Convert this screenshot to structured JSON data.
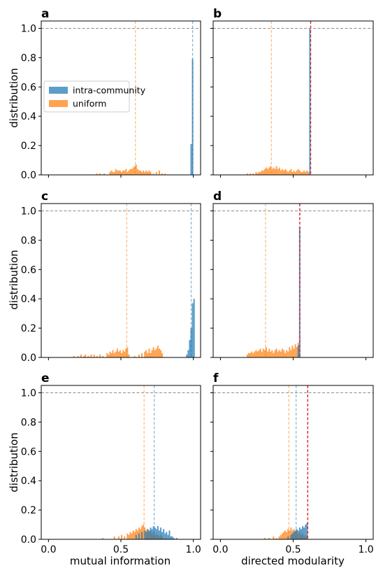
{
  "figure": {
    "ylabel": "distribution",
    "xlabel_left": "mutual information",
    "xlabel_right": "directed modularity"
  },
  "colors": {
    "intra": "#1f77b4",
    "uniform": "#ff7f0e",
    "observed": "#d62728",
    "reference": "#808080"
  },
  "legend": {
    "intra": "intra-community",
    "uniform": "uniform"
  },
  "chart_data": [
    {
      "type": "bar",
      "label": "a",
      "xlim": [
        -0.05,
        1.05
      ],
      "ylim": [
        0,
        1.05
      ],
      "x_ticks": [],
      "y_ticks": [
        "0.0",
        "0.2",
        "0.4",
        "0.6",
        "0.8",
        "1.0"
      ],
      "bin_width": 0.01,
      "ref_line": 1.0,
      "uniform_mean": 0.6,
      "intra_mean": 0.995,
      "observed": null,
      "uniform_bins": [
        [
          0.33,
          0.01
        ],
        [
          0.35,
          0.01
        ],
        [
          0.38,
          0.01
        ],
        [
          0.42,
          0.02
        ],
        [
          0.43,
          0.03
        ],
        [
          0.44,
          0.02
        ],
        [
          0.45,
          0.02
        ],
        [
          0.46,
          0.04
        ],
        [
          0.47,
          0.03
        ],
        [
          0.48,
          0.03
        ],
        [
          0.49,
          0.03
        ],
        [
          0.5,
          0.02
        ],
        [
          0.51,
          0.03
        ],
        [
          0.52,
          0.03
        ],
        [
          0.53,
          0.04
        ],
        [
          0.54,
          0.02
        ],
        [
          0.55,
          0.03
        ],
        [
          0.56,
          0.04
        ],
        [
          0.57,
          0.04
        ],
        [
          0.58,
          0.05
        ],
        [
          0.59,
          0.06
        ],
        [
          0.6,
          0.07
        ],
        [
          0.61,
          0.04
        ],
        [
          0.62,
          0.03
        ],
        [
          0.63,
          0.03
        ],
        [
          0.64,
          0.02
        ],
        [
          0.65,
          0.03
        ],
        [
          0.66,
          0.02
        ],
        [
          0.67,
          0.03
        ],
        [
          0.68,
          0.02
        ],
        [
          0.69,
          0.03
        ],
        [
          0.7,
          0.02
        ],
        [
          0.72,
          0.01
        ],
        [
          0.74,
          0.02
        ],
        [
          0.76,
          0.03
        ],
        [
          0.78,
          0.01
        ],
        [
          0.8,
          0.01
        ]
      ],
      "intra_bins": [
        [
          0.98,
          0.21
        ],
        [
          0.99,
          0.79
        ]
      ]
    },
    {
      "type": "bar",
      "label": "b",
      "xlim": [
        -0.05,
        1.05
      ],
      "ylim": [
        0,
        1.05
      ],
      "x_ticks": [],
      "y_ticks": [],
      "bin_width": 0.01,
      "ref_line": 1.0,
      "uniform_mean": 0.35,
      "intra_mean": null,
      "observed": 0.62,
      "uniform_bins": [
        [
          0.18,
          0.01
        ],
        [
          0.2,
          0.01
        ],
        [
          0.22,
          0.01
        ],
        [
          0.24,
          0.02
        ],
        [
          0.25,
          0.01
        ],
        [
          0.26,
          0.02
        ],
        [
          0.27,
          0.02
        ],
        [
          0.28,
          0.03
        ],
        [
          0.29,
          0.03
        ],
        [
          0.3,
          0.04
        ],
        [
          0.31,
          0.05
        ],
        [
          0.32,
          0.04
        ],
        [
          0.33,
          0.05
        ],
        [
          0.34,
          0.06
        ],
        [
          0.35,
          0.04
        ],
        [
          0.36,
          0.05
        ],
        [
          0.37,
          0.04
        ],
        [
          0.38,
          0.06
        ],
        [
          0.39,
          0.04
        ],
        [
          0.4,
          0.05
        ],
        [
          0.41,
          0.03
        ],
        [
          0.42,
          0.04
        ],
        [
          0.43,
          0.03
        ],
        [
          0.44,
          0.04
        ],
        [
          0.45,
          0.03
        ],
        [
          0.46,
          0.02
        ],
        [
          0.47,
          0.03
        ],
        [
          0.48,
          0.04
        ],
        [
          0.49,
          0.02
        ],
        [
          0.5,
          0.03
        ],
        [
          0.51,
          0.02
        ],
        [
          0.52,
          0.03
        ],
        [
          0.53,
          0.04
        ],
        [
          0.54,
          0.03
        ],
        [
          0.55,
          0.02
        ],
        [
          0.56,
          0.02
        ],
        [
          0.57,
          0.03
        ],
        [
          0.58,
          0.02
        ],
        [
          0.59,
          0.03
        ],
        [
          0.6,
          0.02
        ]
      ],
      "intra_bins": [
        [
          0.61,
          1.0
        ]
      ]
    },
    {
      "type": "bar",
      "label": "c",
      "xlim": [
        -0.05,
        1.05
      ],
      "ylim": [
        0,
        1.05
      ],
      "x_ticks": [],
      "y_ticks": [
        "0.0",
        "0.2",
        "0.4",
        "0.6",
        "0.8",
        "1.0"
      ],
      "bin_width": 0.01,
      "ref_line": 1.0,
      "uniform_mean": 0.54,
      "intra_mean": 0.985,
      "observed": null,
      "uniform_bins": [
        [
          0.17,
          0.01
        ],
        [
          0.2,
          0.01
        ],
        [
          0.22,
          0.02
        ],
        [
          0.24,
          0.01
        ],
        [
          0.25,
          0.02
        ],
        [
          0.27,
          0.01
        ],
        [
          0.29,
          0.02
        ],
        [
          0.31,
          0.02
        ],
        [
          0.33,
          0.01
        ],
        [
          0.35,
          0.02
        ],
        [
          0.37,
          0.01
        ],
        [
          0.4,
          0.03
        ],
        [
          0.41,
          0.02
        ],
        [
          0.42,
          0.04
        ],
        [
          0.43,
          0.03
        ],
        [
          0.44,
          0.05
        ],
        [
          0.45,
          0.03
        ],
        [
          0.46,
          0.04
        ],
        [
          0.47,
          0.06
        ],
        [
          0.48,
          0.04
        ],
        [
          0.49,
          0.05
        ],
        [
          0.5,
          0.03
        ],
        [
          0.51,
          0.05
        ],
        [
          0.52,
          0.04
        ],
        [
          0.53,
          0.06
        ],
        [
          0.54,
          0.07
        ],
        [
          0.55,
          0.02
        ],
        [
          0.59,
          0.01
        ],
        [
          0.62,
          0.02
        ],
        [
          0.64,
          0.03
        ],
        [
          0.66,
          0.04
        ],
        [
          0.67,
          0.05
        ],
        [
          0.68,
          0.03
        ],
        [
          0.69,
          0.06
        ],
        [
          0.7,
          0.03
        ],
        [
          0.71,
          0.05
        ],
        [
          0.72,
          0.07
        ],
        [
          0.73,
          0.05
        ],
        [
          0.74,
          0.06
        ],
        [
          0.75,
          0.08
        ],
        [
          0.76,
          0.06
        ],
        [
          0.77,
          0.05
        ],
        [
          0.78,
          0.03
        ]
      ],
      "intra_bins": [
        [
          0.95,
          0.02
        ],
        [
          0.96,
          0.05
        ],
        [
          0.97,
          0.12
        ],
        [
          0.98,
          0.2
        ],
        [
          0.99,
          0.37
        ],
        [
          1.0,
          0.4
        ]
      ]
    },
    {
      "type": "bar",
      "label": "d",
      "xlim": [
        -0.05,
        1.05
      ],
      "ylim": [
        0,
        1.05
      ],
      "x_ticks": [],
      "y_ticks": [],
      "bin_width": 0.01,
      "ref_line": 1.0,
      "uniform_mean": 0.31,
      "intra_mean": null,
      "observed": 0.545,
      "uniform_bins": [
        [
          0.18,
          0.02
        ],
        [
          0.19,
          0.03
        ],
        [
          0.2,
          0.03
        ],
        [
          0.21,
          0.04
        ],
        [
          0.22,
          0.03
        ],
        [
          0.23,
          0.04
        ],
        [
          0.24,
          0.05
        ],
        [
          0.25,
          0.04
        ],
        [
          0.26,
          0.05
        ],
        [
          0.27,
          0.06
        ],
        [
          0.28,
          0.04
        ],
        [
          0.29,
          0.06
        ],
        [
          0.3,
          0.05
        ],
        [
          0.31,
          0.07
        ],
        [
          0.32,
          0.04
        ],
        [
          0.33,
          0.06
        ],
        [
          0.34,
          0.04
        ],
        [
          0.35,
          0.05
        ],
        [
          0.36,
          0.03
        ],
        [
          0.37,
          0.05
        ],
        [
          0.38,
          0.06
        ],
        [
          0.39,
          0.04
        ],
        [
          0.4,
          0.05
        ],
        [
          0.41,
          0.04
        ],
        [
          0.42,
          0.06
        ],
        [
          0.43,
          0.05
        ],
        [
          0.44,
          0.03
        ],
        [
          0.45,
          0.05
        ],
        [
          0.46,
          0.04
        ],
        [
          0.47,
          0.07
        ],
        [
          0.48,
          0.05
        ],
        [
          0.49,
          0.08
        ],
        [
          0.5,
          0.06
        ],
        [
          0.51,
          0.09
        ],
        [
          0.52,
          0.07
        ],
        [
          0.53,
          0.1
        ]
      ],
      "intra_bins": [
        [
          0.53,
          0.08
        ],
        [
          0.54,
          0.89
        ]
      ]
    },
    {
      "type": "bar",
      "label": "e",
      "xlim": [
        -0.05,
        1.05
      ],
      "ylim": [
        0,
        1.05
      ],
      "x_ticks": [
        "0.0",
        "0.5",
        "1.0"
      ],
      "y_ticks": [
        "0.0",
        "0.2",
        "0.4",
        "0.6",
        "0.8",
        "1.0"
      ],
      "bin_width": 0.01,
      "ref_line": 1.0,
      "uniform_mean": 0.66,
      "intra_mean": 0.73,
      "observed": null,
      "uniform_bins": [
        [
          0.37,
          0.01
        ],
        [
          0.45,
          0.02
        ],
        [
          0.48,
          0.02
        ],
        [
          0.5,
          0.03
        ],
        [
          0.52,
          0.02
        ],
        [
          0.54,
          0.04
        ],
        [
          0.55,
          0.03
        ],
        [
          0.56,
          0.05
        ],
        [
          0.57,
          0.04
        ],
        [
          0.58,
          0.06
        ],
        [
          0.59,
          0.05
        ],
        [
          0.6,
          0.07
        ],
        [
          0.61,
          0.06
        ],
        [
          0.62,
          0.08
        ],
        [
          0.63,
          0.07
        ],
        [
          0.64,
          0.09
        ],
        [
          0.65,
          0.1
        ],
        [
          0.66,
          0.08
        ],
        [
          0.67,
          0.06
        ],
        [
          0.68,
          0.07
        ],
        [
          0.69,
          0.05
        ],
        [
          0.7,
          0.06
        ],
        [
          0.71,
          0.04
        ],
        [
          0.72,
          0.05
        ],
        [
          0.73,
          0.03
        ],
        [
          0.74,
          0.04
        ],
        [
          0.75,
          0.03
        ],
        [
          0.76,
          0.02
        ],
        [
          0.77,
          0.03
        ],
        [
          0.78,
          0.02
        ],
        [
          0.8,
          0.01
        ]
      ],
      "intra_bins": [
        [
          0.6,
          0.03
        ],
        [
          0.62,
          0.04
        ],
        [
          0.64,
          0.05
        ],
        [
          0.66,
          0.06
        ],
        [
          0.67,
          0.05
        ],
        [
          0.68,
          0.07
        ],
        [
          0.69,
          0.06
        ],
        [
          0.7,
          0.08
        ],
        [
          0.71,
          0.07
        ],
        [
          0.72,
          0.09
        ],
        [
          0.73,
          0.08
        ],
        [
          0.74,
          0.07
        ],
        [
          0.75,
          0.09
        ],
        [
          0.76,
          0.06
        ],
        [
          0.77,
          0.08
        ],
        [
          0.78,
          0.05
        ],
        [
          0.79,
          0.07
        ],
        [
          0.8,
          0.04
        ],
        [
          0.81,
          0.05
        ],
        [
          0.82,
          0.03
        ],
        [
          0.83,
          0.06
        ],
        [
          0.84,
          0.02
        ],
        [
          0.85,
          0.02
        ],
        [
          0.86,
          0.01
        ],
        [
          0.88,
          0.01
        ]
      ]
    },
    {
      "type": "bar",
      "label": "f",
      "xlim": [
        -0.05,
        1.05
      ],
      "ylim": [
        0,
        1.05
      ],
      "x_ticks": [
        "0.0",
        "0.5",
        "1.0"
      ],
      "y_ticks": [],
      "bin_width": 0.01,
      "ref_line": 1.0,
      "uniform_mean": 0.47,
      "intra_mean": 0.52,
      "observed": 0.6,
      "uniform_bins": [
        [
          0.3,
          0.01
        ],
        [
          0.33,
          0.01
        ],
        [
          0.36,
          0.02
        ],
        [
          0.38,
          0.01
        ],
        [
          0.4,
          0.02
        ],
        [
          0.41,
          0.03
        ],
        [
          0.42,
          0.04
        ],
        [
          0.43,
          0.05
        ],
        [
          0.44,
          0.06
        ],
        [
          0.45,
          0.05
        ],
        [
          0.46,
          0.07
        ],
        [
          0.47,
          0.06
        ],
        [
          0.48,
          0.08
        ],
        [
          0.49,
          0.06
        ],
        [
          0.5,
          0.07
        ],
        [
          0.51,
          0.05
        ],
        [
          0.52,
          0.06
        ],
        [
          0.53,
          0.04
        ],
        [
          0.54,
          0.05
        ],
        [
          0.55,
          0.03
        ],
        [
          0.56,
          0.04
        ],
        [
          0.57,
          0.02
        ],
        [
          0.58,
          0.03
        ],
        [
          0.59,
          0.02
        ]
      ],
      "intra_bins": [
        [
          0.46,
          0.02
        ],
        [
          0.48,
          0.03
        ],
        [
          0.49,
          0.04
        ],
        [
          0.5,
          0.05
        ],
        [
          0.51,
          0.06
        ],
        [
          0.52,
          0.07
        ],
        [
          0.53,
          0.06
        ],
        [
          0.54,
          0.08
        ],
        [
          0.55,
          0.07
        ],
        [
          0.56,
          0.09
        ],
        [
          0.57,
          0.08
        ],
        [
          0.58,
          0.1
        ],
        [
          0.59,
          0.11
        ]
      ]
    }
  ]
}
